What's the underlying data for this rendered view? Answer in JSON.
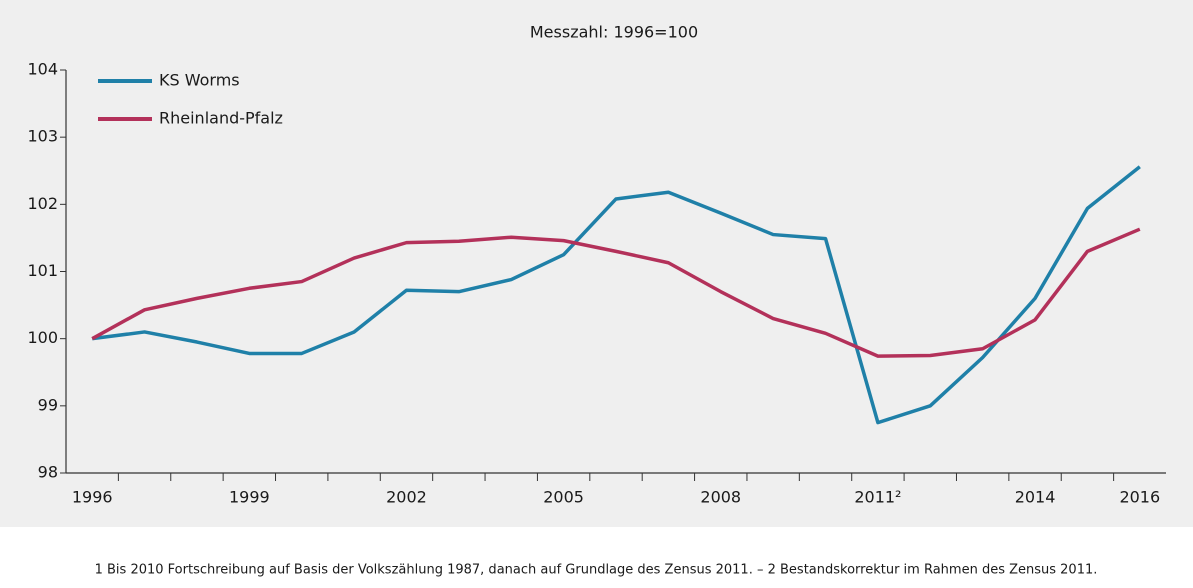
{
  "chart_data": {
    "type": "line",
    "title": "Messzahl: 1996=100",
    "categories": [
      "1996",
      null,
      null,
      "1999",
      null,
      null,
      "2002",
      null,
      null,
      "2005",
      null,
      null,
      "2008",
      null,
      null,
      "2011²",
      null,
      null,
      "2014",
      null,
      "2016"
    ],
    "series": [
      {
        "name": "KS Worms",
        "color": "#1f80a8",
        "values": [
          100,
          100.1,
          99.95,
          99.78,
          99.78,
          100.1,
          100.72,
          100.7,
          100.88,
          101.25,
          102.08,
          102.18,
          101.87,
          101.55,
          101.49,
          98.75,
          99.0,
          99.72,
          100.6,
          101.94,
          102.56
        ]
      },
      {
        "name": "Rheinland-Pfalz",
        "color": "#b3315a",
        "values": [
          100,
          100.43,
          100.6,
          100.75,
          100.85,
          101.2,
          101.43,
          101.45,
          101.51,
          101.46,
          101.3,
          101.13,
          100.7,
          100.3,
          100.08,
          99.74,
          99.75,
          99.85,
          100.28,
          101.3,
          101.63
        ]
      }
    ],
    "ylim": [
      98,
      104
    ],
    "yticks": [
      98,
      99,
      100,
      101,
      102,
      103,
      104
    ],
    "legend": "upper left",
    "footnote": "1 Bis 2010 Fortschreibung auf Basis der Volkszählung 1987, danach auf Grundlage des Zensus 2011. – 2 Bestandskorrektur im Rahmen des Zensus 2011."
  }
}
